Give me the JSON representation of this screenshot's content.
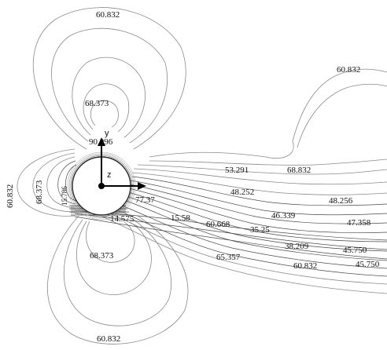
{
  "diagram": {
    "type": "contour-plot",
    "axes": {
      "y": "y",
      "z": "z"
    },
    "level_labels": [
      "60.832",
      "60.832",
      "68.373",
      "90.996",
      "60.832",
      "68.373",
      "15.786",
      "53.291",
      "68.832",
      "48.252",
      "48.256",
      "77.37",
      "14.575",
      "15.58",
      "60.668",
      "35.25",
      "46.339",
      "47.358",
      "38.209",
      "45.750",
      "65.357",
      "60.832",
      "45.750",
      "68.373",
      "60.832"
    ]
  }
}
